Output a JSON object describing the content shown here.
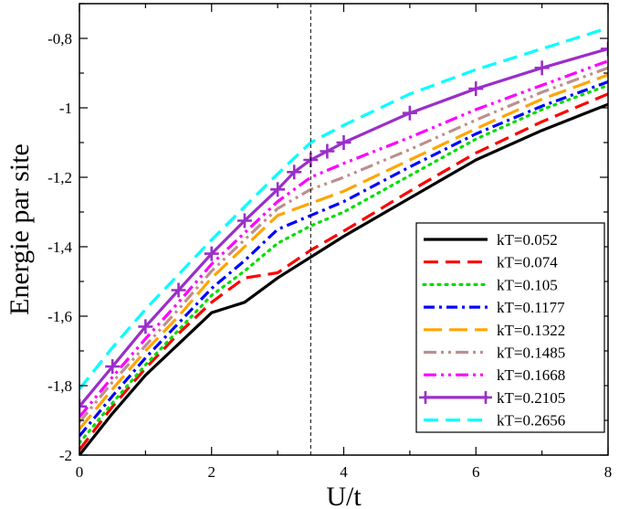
{
  "chart_data": {
    "type": "line",
    "title": "",
    "xlabel": "U/t",
    "ylabel": "Energie par site",
    "xlim": [
      0,
      8
    ],
    "ylim": [
      -2,
      -0.7
    ],
    "xticks": [
      0,
      2,
      4,
      6,
      8
    ],
    "xtick_labels": [
      "0",
      "2",
      "4",
      "6",
      "8"
    ],
    "yticks": [
      -2,
      -1.8,
      -1.6,
      -1.4,
      -1.2,
      -1,
      -0.8
    ],
    "ytick_labels": [
      "-2",
      "-1,8",
      "-1,6",
      "-1,4",
      "-1,2",
      "-1",
      "-0,8"
    ],
    "grid": false,
    "vline": {
      "x": 3.5,
      "style": "dashed"
    },
    "legend_position": "bottom-right",
    "series": [
      {
        "name": "kT=0.052",
        "color": "#000000",
        "dash": "solid",
        "marker": "none",
        "x": [
          0,
          0.5,
          1,
          1.5,
          2,
          2.5,
          3,
          3.5,
          4,
          5,
          6,
          7,
          8
        ],
        "y": [
          -2.0,
          -1.88,
          -1.77,
          -1.68,
          -1.59,
          -1.56,
          -1.49,
          -1.43,
          -1.37,
          -1.26,
          -1.15,
          -1.065,
          -0.99
        ]
      },
      {
        "name": "kT=0.074",
        "color": "#ff0000",
        "dash": "dashed",
        "marker": "none",
        "x": [
          0,
          0.5,
          1,
          1.5,
          2,
          2.5,
          3,
          3.5,
          4,
          5,
          6,
          7,
          8
        ],
        "y": [
          -1.985,
          -1.86,
          -1.75,
          -1.65,
          -1.56,
          -1.49,
          -1.475,
          -1.41,
          -1.355,
          -1.24,
          -1.13,
          -1.04,
          -0.96
        ]
      },
      {
        "name": "kT=0.105",
        "color": "#00dd00",
        "dash": "dotted",
        "marker": "none",
        "x": [
          0,
          0.5,
          1,
          1.5,
          2,
          2.5,
          3,
          3.5,
          4,
          5,
          6,
          7,
          8
        ],
        "y": [
          -1.965,
          -1.85,
          -1.74,
          -1.64,
          -1.54,
          -1.47,
          -1.39,
          -1.34,
          -1.3,
          -1.195,
          -1.09,
          -1.005,
          -0.935
        ]
      },
      {
        "name": "kT=0.1177",
        "color": "#0000ff",
        "dash": "dashdot",
        "marker": "none",
        "x": [
          0,
          0.5,
          1,
          1.5,
          2,
          2.5,
          3,
          3.5,
          4,
          5,
          6,
          7,
          8
        ],
        "y": [
          -1.945,
          -1.83,
          -1.72,
          -1.62,
          -1.52,
          -1.44,
          -1.35,
          -1.31,
          -1.27,
          -1.17,
          -1.075,
          -0.995,
          -0.925
        ]
      },
      {
        "name": "kT=0.1322",
        "color": "#ffa500",
        "dash": "longdash",
        "marker": "none",
        "x": [
          0,
          0.5,
          1,
          1.5,
          2,
          2.5,
          3,
          3.5,
          4,
          5,
          6,
          7,
          8
        ],
        "y": [
          -1.925,
          -1.81,
          -1.7,
          -1.6,
          -1.49,
          -1.4,
          -1.31,
          -1.275,
          -1.24,
          -1.15,
          -1.06,
          -0.975,
          -0.905
        ]
      },
      {
        "name": "kT=0.1485",
        "color": "#bc8f8f",
        "dash": "dashdotdot",
        "marker": "none",
        "x": [
          0,
          0.5,
          1,
          1.5,
          2,
          2.5,
          3,
          3.5,
          4,
          5,
          6,
          7,
          8
        ],
        "y": [
          -1.905,
          -1.79,
          -1.685,
          -1.58,
          -1.47,
          -1.38,
          -1.29,
          -1.235,
          -1.2,
          -1.12,
          -1.035,
          -0.955,
          -0.885
        ]
      },
      {
        "name": "kT=0.1668",
        "color": "#ff00ff",
        "dash": "dashdotdot",
        "marker": "none",
        "x": [
          0,
          0.5,
          1,
          1.5,
          2,
          2.5,
          3,
          3.5,
          4,
          5,
          6,
          7,
          8
        ],
        "y": [
          -1.89,
          -1.775,
          -1.665,
          -1.56,
          -1.45,
          -1.36,
          -1.27,
          -1.2,
          -1.16,
          -1.085,
          -1.005,
          -0.935,
          -0.865
        ]
      },
      {
        "name": "kT=0.2105",
        "color": "#9a2fc9",
        "dash": "solid",
        "marker": "plus",
        "x": [
          0,
          0.5,
          1,
          1.5,
          2,
          2.5,
          3,
          3.25,
          3.5,
          3.75,
          4,
          5,
          6,
          7,
          8
        ],
        "y": [
          -1.86,
          -1.745,
          -1.63,
          -1.525,
          -1.42,
          -1.325,
          -1.235,
          -1.185,
          -1.15,
          -1.125,
          -1.1,
          -1.015,
          -0.945,
          -0.885,
          -0.83
        ]
      },
      {
        "name": "kT=0.2656",
        "color": "#00ffff",
        "dash": "dashed",
        "marker": "none",
        "x": [
          0,
          0.5,
          1,
          1.5,
          2,
          2.5,
          3,
          3.5,
          4,
          5,
          6,
          7,
          8
        ],
        "y": [
          -1.81,
          -1.69,
          -1.58,
          -1.48,
          -1.38,
          -1.285,
          -1.19,
          -1.1,
          -1.05,
          -0.96,
          -0.89,
          -0.83,
          -0.77
        ]
      }
    ]
  }
}
